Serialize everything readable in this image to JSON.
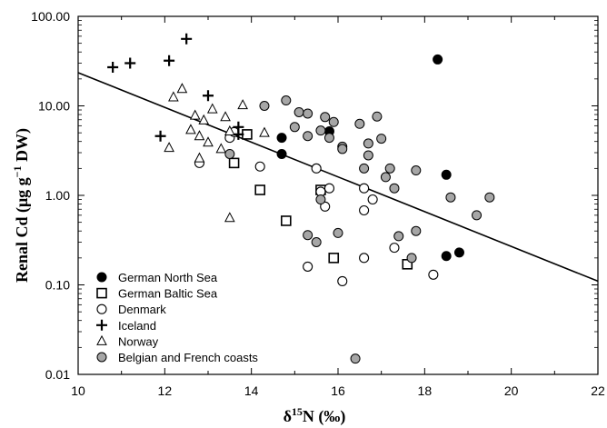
{
  "chart_data": {
    "type": "scatter",
    "title": "",
    "xlabel": "δ15N (‰)",
    "ylabel": "Renal Cd (μg g−1 DW)",
    "xlim": [
      10,
      22
    ],
    "ylim": [
      0.01,
      100
    ],
    "y_scale": "log",
    "x_ticks": [
      "10",
      "12",
      "14",
      "16",
      "18",
      "20",
      "22"
    ],
    "x_tick_values": [
      10,
      12,
      14,
      16,
      18,
      20,
      22
    ],
    "y_ticks": [
      "0.01",
      "0.10",
      "1.00",
      "10.00",
      "100.00"
    ],
    "y_tick_values": [
      0.01,
      0.1,
      1,
      10,
      100
    ],
    "grid": false,
    "legend_position": "bottom-left",
    "series": [
      {
        "name": "German North Sea",
        "marker": "filled-circle",
        "color": "#000000",
        "points": [
          [
            14.7,
            4.4
          ],
          [
            14.7,
            2.9
          ],
          [
            15.8,
            5.2
          ],
          [
            18.3,
            33
          ],
          [
            18.5,
            1.7
          ],
          [
            18.5,
            0.21
          ],
          [
            18.8,
            0.23
          ]
        ]
      },
      {
        "name": "German Baltic Sea",
        "marker": "open-square",
        "color": "#000000",
        "points": [
          [
            13.6,
            2.3
          ],
          [
            13.9,
            4.8
          ],
          [
            14.2,
            1.15
          ],
          [
            14.8,
            0.52
          ],
          [
            15.6,
            1.15
          ],
          [
            15.9,
            0.2
          ],
          [
            17.6,
            0.17
          ]
        ]
      },
      {
        "name": "Denmark",
        "marker": "open-circle",
        "color": "#000000",
        "points": [
          [
            12.8,
            2.3
          ],
          [
            13.5,
            4.4
          ],
          [
            14.2,
            2.1
          ],
          [
            15.5,
            2.0
          ],
          [
            15.6,
            1.1
          ],
          [
            15.7,
            0.75
          ],
          [
            15.8,
            1.2
          ],
          [
            15.3,
            0.16
          ],
          [
            16.1,
            0.11
          ],
          [
            16.6,
            0.2
          ],
          [
            16.6,
            0.68
          ],
          [
            16.6,
            1.2
          ],
          [
            16.8,
            0.9
          ],
          [
            17.3,
            0.26
          ],
          [
            18.2,
            0.13
          ],
          [
            13.6,
            5.1
          ]
        ]
      },
      {
        "name": "Iceland",
        "marker": "plus",
        "color": "#000000",
        "points": [
          [
            10.8,
            27
          ],
          [
            11.2,
            30
          ],
          [
            11.9,
            4.6
          ],
          [
            12.1,
            32
          ],
          [
            12.5,
            56
          ],
          [
            13.0,
            13
          ],
          [
            13.7,
            5.8
          ],
          [
            13.7,
            4.8
          ]
        ]
      },
      {
        "name": "Norway",
        "marker": "open-triangle",
        "color": "#000000",
        "points": [
          [
            12.1,
            3.4
          ],
          [
            12.2,
            12.5
          ],
          [
            12.4,
            15.5
          ],
          [
            12.6,
            5.4
          ],
          [
            12.7,
            7.8
          ],
          [
            12.8,
            2.6
          ],
          [
            12.8,
            4.6
          ],
          [
            12.9,
            6.9
          ],
          [
            13.0,
            3.9
          ],
          [
            13.1,
            9.2
          ],
          [
            13.3,
            3.3
          ],
          [
            13.4,
            7.5
          ],
          [
            13.5,
            5.2
          ],
          [
            13.8,
            10.2
          ],
          [
            14.3,
            5.0
          ],
          [
            13.5,
            0.56
          ]
        ]
      },
      {
        "name": "Belgian and French coasts",
        "marker": "gray-circle",
        "color": "#a6a6a6",
        "points": [
          [
            13.5,
            2.9
          ],
          [
            14.3,
            10.0
          ],
          [
            14.8,
            11.5
          ],
          [
            15.0,
            5.8
          ],
          [
            15.1,
            8.5
          ],
          [
            15.3,
            8.2
          ],
          [
            15.3,
            4.6
          ],
          [
            15.5,
            0.3
          ],
          [
            15.6,
            5.3
          ],
          [
            15.7,
            7.5
          ],
          [
            15.8,
            4.4
          ],
          [
            15.9,
            6.6
          ],
          [
            16.0,
            0.38
          ],
          [
            16.1,
            3.5
          ],
          [
            16.1,
            3.3
          ],
          [
            16.5,
            6.3
          ],
          [
            16.6,
            2.0
          ],
          [
            16.7,
            3.8
          ],
          [
            16.7,
            2.8
          ],
          [
            16.9,
            7.6
          ],
          [
            17.0,
            4.3
          ],
          [
            17.1,
            1.6
          ],
          [
            17.2,
            2.0
          ],
          [
            17.3,
            1.2
          ],
          [
            17.4,
            0.35
          ],
          [
            17.7,
            0.2
          ],
          [
            17.8,
            1.9
          ],
          [
            17.8,
            0.4
          ],
          [
            18.6,
            0.95
          ],
          [
            19.2,
            0.6
          ],
          [
            19.5,
            0.95
          ],
          [
            16.4,
            0.015
          ],
          [
            15.6,
            0.9
          ],
          [
            15.3,
            0.36
          ]
        ]
      }
    ],
    "regression_line": {
      "x": [
        10,
        22
      ],
      "y": [
        23.5,
        0.11
      ]
    }
  }
}
